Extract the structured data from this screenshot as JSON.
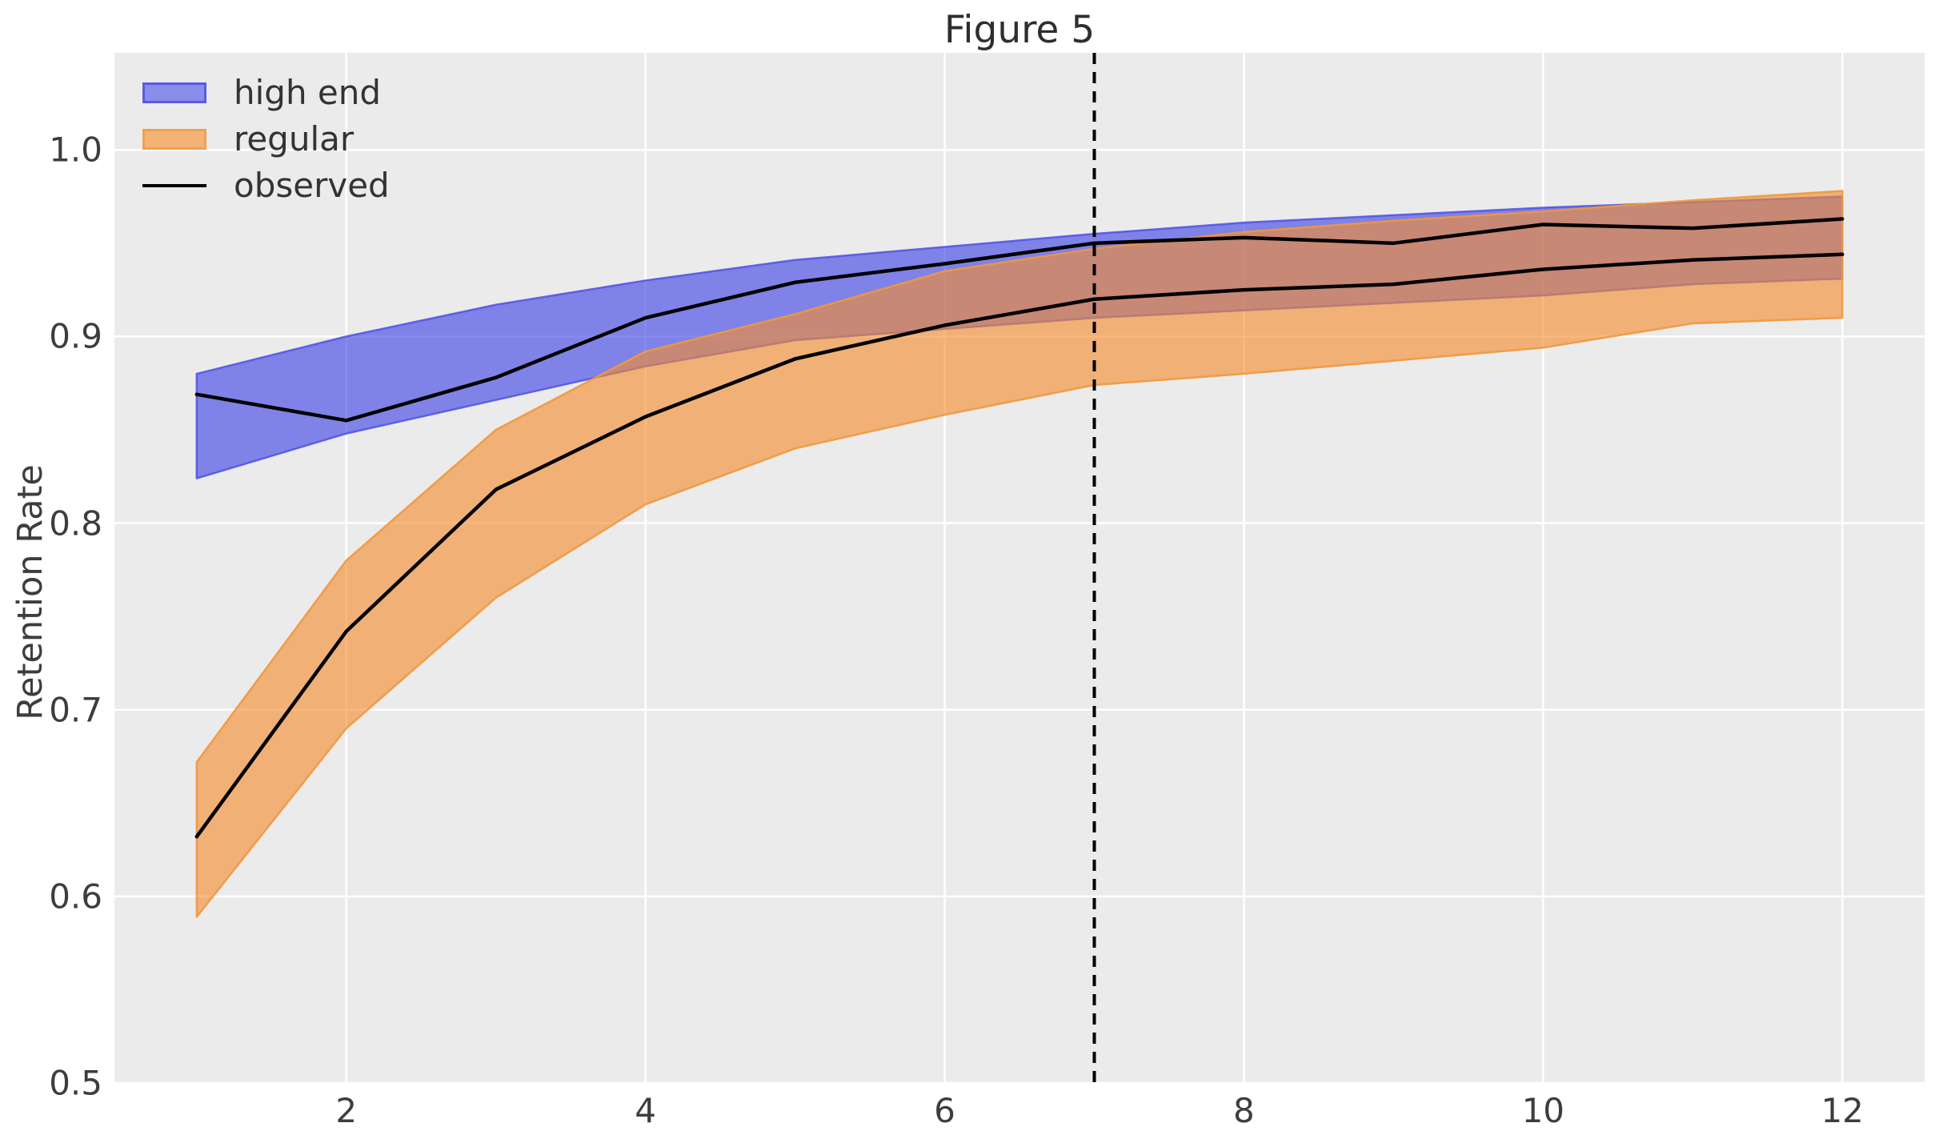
{
  "chart_data": {
    "type": "area",
    "title": "Figure 5",
    "xlabel": "",
    "ylabel": "Retention Rate",
    "xlim": [
      0.45,
      12.55
    ],
    "ylim": [
      0.5,
      1.052
    ],
    "grid": true,
    "legend_position": "upper left",
    "x": [
      1,
      2,
      3,
      4,
      5,
      6,
      7,
      8,
      9,
      10,
      11,
      12
    ],
    "xticks": {
      "values": [
        2,
        4,
        6,
        8,
        10,
        12
      ],
      "labels": [
        "2",
        "4",
        "6",
        "8",
        "10",
        "12"
      ]
    },
    "yticks": {
      "values": [
        0.5,
        0.6,
        0.7,
        0.8,
        0.9,
        1.0
      ],
      "labels": [
        "0.5",
        "0.6",
        "0.7",
        "0.8",
        "0.9",
        "1.0"
      ]
    },
    "vline": {
      "x": 7,
      "style": "dashed",
      "color": "#000000"
    },
    "bands": [
      {
        "name": "high end",
        "upper": [
          0.88,
          0.9,
          0.917,
          0.93,
          0.941,
          0.948,
          0.955,
          0.961,
          0.965,
          0.969,
          0.972,
          0.975
        ],
        "lower": [
          0.824,
          0.848,
          0.866,
          0.884,
          0.898,
          0.904,
          0.91,
          0.914,
          0.918,
          0.922,
          0.928,
          0.931
        ],
        "fill": "rgba(62,66,228,0.62)",
        "edge": "rgba(82,86,230,0.9)"
      },
      {
        "name": "regular",
        "upper": [
          0.672,
          0.78,
          0.85,
          0.892,
          0.912,
          0.935,
          0.947,
          0.956,
          0.962,
          0.967,
          0.973,
          0.978
        ],
        "lower": [
          0.589,
          0.69,
          0.76,
          0.81,
          0.84,
          0.858,
          0.874,
          0.88,
          0.887,
          0.894,
          0.907,
          0.91
        ],
        "fill": "rgba(243,140,46,0.62)",
        "edge": "rgba(240,152,62,0.9)"
      }
    ],
    "lines": [
      {
        "name": "observed (high end)",
        "values": [
          0.869,
          0.855,
          0.878,
          0.91,
          0.929,
          0.939,
          0.95,
          0.953,
          0.95,
          0.96,
          0.958,
          0.963
        ],
        "color": "#000000"
      },
      {
        "name": "observed (regular)",
        "values": [
          0.632,
          0.742,
          0.818,
          0.857,
          0.888,
          0.906,
          0.92,
          0.925,
          0.928,
          0.936,
          0.941,
          0.944
        ],
        "color": "#000000"
      }
    ],
    "legend": [
      {
        "label": "high end",
        "type": "patch",
        "fill": "#8a8de9",
        "border": "#575ce2"
      },
      {
        "label": "regular",
        "type": "patch",
        "fill": "#f5b276",
        "border": "#f0a050"
      },
      {
        "label": "observed",
        "type": "line",
        "color": "#000000"
      }
    ],
    "colors": {
      "plot_background": "#ebebeb",
      "grid": "#ffffff",
      "tick_text": "#3d3d3d",
      "title_text": "#2e2e2e"
    }
  }
}
